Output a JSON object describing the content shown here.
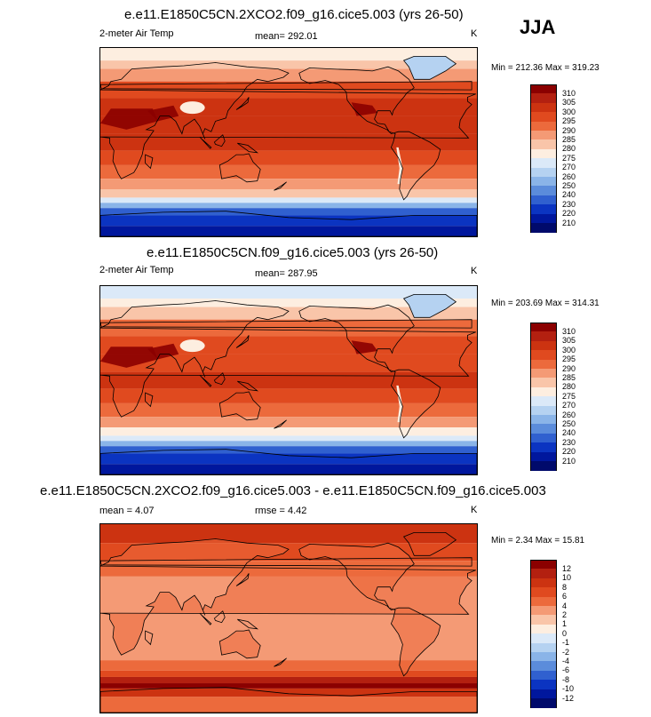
{
  "season": "JJA",
  "panels": [
    {
      "title": "e.e11.E1850C5CN.2XCO2.f09_g16.cice5.003 (yrs 26-50)",
      "left_label": "2-meter Air Temp",
      "center_label": "mean= 292.01",
      "units": "K",
      "minmax": "Min = 212.36 Max = 319.23",
      "colorbar_labels": [
        "310",
        "305",
        "300",
        "295",
        "290",
        "285",
        "280",
        "275",
        "270",
        "260",
        "250",
        "240",
        "230",
        "220",
        "210"
      ],
      "colorbar_colors": [
        "#8b0000",
        "#b32010",
        "#cc3311",
        "#e04a1f",
        "#ec6a3c",
        "#f49a75",
        "#f9c5a9",
        "#fdeee0",
        "#dbe9f8",
        "#b5d2f1",
        "#8ab4e8",
        "#5b8cdb",
        "#3060cf",
        "#0b34c1",
        "#00179d",
        "#000a6b"
      ],
      "scale": "absolute"
    },
    {
      "title": "e.e11.E1850C5CN.f09_g16.cice5.003 (yrs 26-50)",
      "left_label": "2-meter Air Temp",
      "center_label": "mean= 287.95",
      "units": "K",
      "minmax": "Min = 203.69 Max = 314.31",
      "colorbar_labels": [
        "310",
        "305",
        "300",
        "295",
        "290",
        "285",
        "280",
        "275",
        "270",
        "260",
        "250",
        "240",
        "230",
        "220",
        "210"
      ],
      "colorbar_colors": [
        "#8b0000",
        "#b32010",
        "#cc3311",
        "#e04a1f",
        "#ec6a3c",
        "#f49a75",
        "#f9c5a9",
        "#fdeee0",
        "#dbe9f8",
        "#b5d2f1",
        "#8ab4e8",
        "#5b8cdb",
        "#3060cf",
        "#0b34c1",
        "#00179d",
        "#000a6b"
      ],
      "scale": "absolute"
    },
    {
      "title": "e.e11.E1850C5CN.2XCO2.f09_g16.cice5.003 - e.e11.E1850C5CN.f09_g16.cice5.003",
      "left_label": "mean =   4.07",
      "center_label": "rmse =   4.42",
      "units": "K",
      "minmax": "Min =  2.34 Max =  15.81",
      "colorbar_labels": [
        "12",
        "10",
        "8",
        "6",
        "4",
        "2",
        "1",
        "0",
        "-1",
        "-2",
        "-4",
        "-6",
        "-8",
        "-10",
        "-12"
      ],
      "colorbar_colors": [
        "#8b0000",
        "#b32010",
        "#cc3311",
        "#e04a1f",
        "#ec6a3c",
        "#f49a75",
        "#f9c5a9",
        "#fdeee0",
        "#dbe9f8",
        "#b5d2f1",
        "#8ab4e8",
        "#5b8cdb",
        "#3060cf",
        "#0b34c1",
        "#00179d",
        "#000a6b"
      ],
      "scale": "difference"
    }
  ]
}
